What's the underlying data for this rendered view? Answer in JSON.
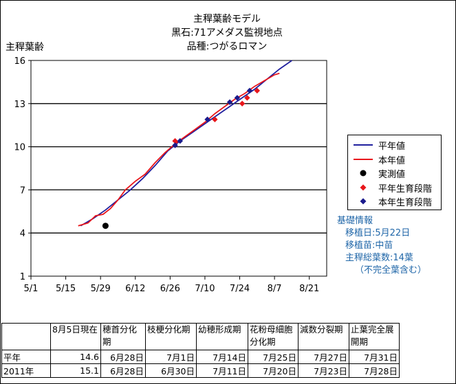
{
  "title_lines": [
    "主稈葉齢モデル",
    "黒石:71アメダス監視地点",
    "品種:つがるロマン"
  ],
  "colors": {
    "normal": "#1f1f9e",
    "current": "#e8161b",
    "measured": "#000000",
    "stage_normal": "#e8161b",
    "stage_current": "#1a1a8c",
    "info": "#1f66a8"
  },
  "chart_data": {
    "type": "line",
    "ylabel": "主稈葉齢",
    "xlabel": "",
    "ylim": [
      1,
      16
    ],
    "yticks": [
      1,
      4,
      7,
      10,
      13,
      16
    ],
    "xlim": [
      "05-01",
      "08-28"
    ],
    "xticks": [
      "5/1",
      "5/15",
      "5/29",
      "6/12",
      "6/26",
      "7/10",
      "7/24",
      "8/7",
      "8/21"
    ],
    "grid": "horizontal",
    "legend_position": "right",
    "series": [
      {
        "name": "平年値",
        "style": "line",
        "color": "#1f1f9e",
        "points": [
          [
            "05-21",
            4.5
          ],
          [
            "05-26",
            5.0
          ],
          [
            "05-31",
            5.6
          ],
          [
            "06-05",
            6.3
          ],
          [
            "06-10",
            7.0
          ],
          [
            "06-15",
            7.8
          ],
          [
            "06-20",
            8.7
          ],
          [
            "06-25",
            9.7
          ],
          [
            "06-30",
            10.4
          ],
          [
            "07-05",
            11.0
          ],
          [
            "07-10",
            11.6
          ],
          [
            "07-15",
            12.2
          ],
          [
            "07-20",
            12.8
          ],
          [
            "07-25",
            13.4
          ],
          [
            "07-30",
            14.0
          ],
          [
            "08-04",
            14.7
          ],
          [
            "08-09",
            15.4
          ],
          [
            "08-14",
            16.0
          ]
        ]
      },
      {
        "name": "本年値",
        "style": "line",
        "color": "#e8161b",
        "points": [
          [
            "05-20",
            4.5
          ],
          [
            "05-24",
            4.7
          ],
          [
            "05-27",
            5.2
          ],
          [
            "05-30",
            5.3
          ],
          [
            "06-02",
            5.7
          ],
          [
            "06-05",
            6.3
          ],
          [
            "06-08",
            7.0
          ],
          [
            "06-12",
            7.6
          ],
          [
            "06-16",
            8.1
          ],
          [
            "06-20",
            8.9
          ],
          [
            "06-24",
            9.6
          ],
          [
            "06-28",
            10.2
          ],
          [
            "07-02",
            10.7
          ],
          [
            "07-06",
            11.2
          ],
          [
            "07-10",
            11.7
          ],
          [
            "07-14",
            12.3
          ],
          [
            "07-18",
            12.8
          ],
          [
            "07-22",
            13.3
          ],
          [
            "07-26",
            13.7
          ],
          [
            "07-30",
            14.2
          ],
          [
            "08-03",
            14.6
          ],
          [
            "08-07",
            15.0
          ],
          [
            "08-09",
            15.1
          ]
        ]
      },
      {
        "name": "実測値",
        "style": "marker",
        "marker": "circle",
        "color": "#000000",
        "points": [
          [
            "05-31",
            4.5
          ]
        ]
      },
      {
        "name": "平年生育段階",
        "style": "marker",
        "marker": "diamond",
        "color": "#e8161b",
        "points": [
          [
            "06-28",
            10.4
          ],
          [
            "07-14",
            11.9
          ],
          [
            "07-25",
            13.0
          ],
          [
            "07-27",
            13.4
          ],
          [
            "07-31",
            13.9
          ]
        ]
      },
      {
        "name": "本年生育段階",
        "style": "marker",
        "marker": "diamond",
        "color": "#1a1a8c",
        "points": [
          [
            "06-28",
            10.1
          ],
          [
            "06-30",
            10.4
          ],
          [
            "07-11",
            11.9
          ],
          [
            "07-20",
            13.1
          ],
          [
            "07-23",
            13.4
          ],
          [
            "07-28",
            13.9
          ]
        ]
      }
    ]
  },
  "legend": [
    {
      "label": "平年値",
      "kind": "line",
      "color": "#1f1f9e"
    },
    {
      "label": "本年値",
      "kind": "line",
      "color": "#e8161b"
    },
    {
      "label": "実測値",
      "kind": "circle",
      "color": "#000000"
    },
    {
      "label": "平年生育段階",
      "kind": "diamond",
      "color": "#e8161b"
    },
    {
      "label": "本年生育段階",
      "kind": "diamond",
      "color": "#1a1a8c"
    }
  ],
  "info": {
    "heading": "基礎情報",
    "planting_date": "移植日:5月22日",
    "seedling": "移植苗:中苗",
    "total_leaves": "主稈総葉数:14葉",
    "note": "（不完全葉含む）"
  },
  "table": {
    "headers": [
      "",
      "8月5日現在",
      "穂首分化期",
      "枝梗分化期",
      "幼穂形成期",
      "花粉母細胞分化期",
      "減数分裂期",
      "止葉完全展開期"
    ],
    "rows": [
      [
        "平年",
        "14.6",
        "6月28日",
        "7月1日",
        "7月14日",
        "7月25日",
        "7月27日",
        "7月31日"
      ],
      [
        "2011年",
        "15.1",
        "6月28日",
        "6月30日",
        "7月11日",
        "7月20日",
        "7月23日",
        "7月28日"
      ]
    ]
  }
}
